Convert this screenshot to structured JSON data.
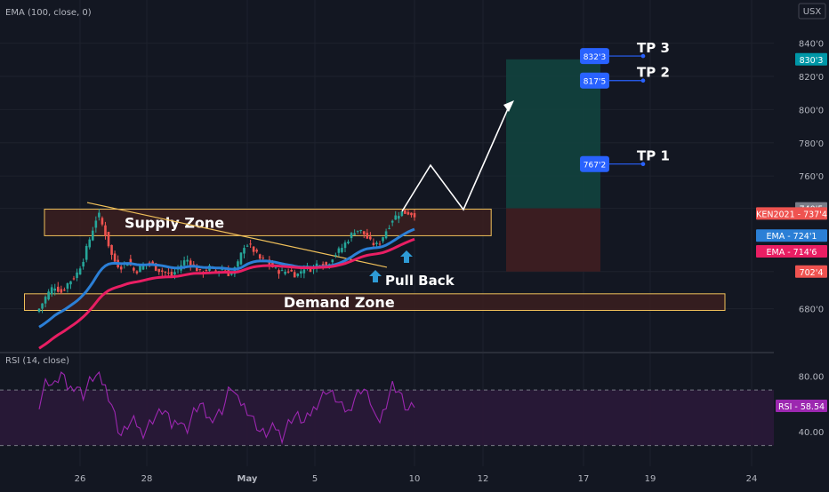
{
  "indicators": {
    "ema": "EMA (100, close, 0)",
    "rsi": "RSI (14, close)"
  },
  "currency": "USX",
  "colors": {
    "bg": "#131722",
    "grid": "#1e222d",
    "up": "#26a69a",
    "down": "#ef5350",
    "ema_fast": "#2b7fd6",
    "ema_slow": "#e91e63",
    "rsi": "#9c27b0",
    "zone_border": "#f0c05a",
    "zone_fill": "#3b1e1e",
    "target_fill": "#12423e",
    "stop_fill": "#3d1e22",
    "label_blue": "#2962ff"
  },
  "chart_data": {
    "type": "candlestick",
    "price_axis": {
      "ticks": [
        "840'0",
        "820'0",
        "800'0",
        "780'0",
        "760'0",
        "740'5",
        "702'4",
        "680'0"
      ],
      "range": [
        660,
        850
      ]
    },
    "x_ticks": [
      "26",
      "28",
      "May",
      "5",
      "10",
      "12",
      "17",
      "19",
      "24"
    ],
    "price_labels": [
      {
        "label": "830'3",
        "value": 830.3,
        "color": "#0097a7"
      },
      {
        "label": "740'5",
        "value": 740.5,
        "color": "#787b86"
      },
      {
        "label": "KEN2021 - 737'4",
        "value": 737.4,
        "color": "#ef5350"
      },
      {
        "label": "EMA - 724'1",
        "value": 724.1,
        "color": "#2b7fd6"
      },
      {
        "label": "EMA - 714'6",
        "value": 714.6,
        "color": "#e91e63"
      },
      {
        "label": "702'4",
        "value": 702.4,
        "color": "#ef5350"
      }
    ],
    "zones": [
      {
        "name": "Supply Zone",
        "top": 740,
        "bottom": 724,
        "t_start": 0.04,
        "t_end": 0.598
      },
      {
        "name": "Demand Zone",
        "top": 689,
        "bottom": 679,
        "t_start": 0.015,
        "t_end": 0.89
      }
    ],
    "trendline_label": "Pull Back",
    "targets": [
      {
        "name": "TP 3",
        "box": "832'3",
        "value": 832.3
      },
      {
        "name": "TP 2",
        "box": "817'5",
        "value": 817.5
      },
      {
        "name": "TP 1",
        "box": "767'2",
        "value": 767.2
      }
    ],
    "position": {
      "entry": 740.5,
      "target": 830.3,
      "stop": 702.4
    },
    "rsi": {
      "current_label": "RSI - 58.54",
      "current": 58.54,
      "ticks": [
        "80.00",
        "40.00"
      ],
      "upper": 70,
      "lower": 30
    },
    "close_path": [
      680,
      688,
      694,
      690,
      696,
      700,
      710,
      724,
      738,
      725,
      710,
      705,
      709,
      702,
      706,
      708,
      704,
      702,
      700,
      705,
      710,
      706,
      701,
      705,
      703,
      704,
      700,
      707,
      720,
      716,
      710,
      708,
      704,
      702,
      703,
      700,
      705,
      704,
      708,
      706,
      712,
      716,
      722,
      728,
      726,
      720,
      718,
      726,
      734,
      738,
      738,
      737
    ],
    "rsi_path": [
      60,
      78,
      72,
      82,
      70,
      74,
      66,
      78,
      80,
      72,
      58,
      36,
      44,
      48,
      38,
      46,
      52,
      56,
      44,
      50,
      40,
      54,
      60,
      48,
      52,
      56,
      74,
      62,
      58,
      50,
      40,
      38,
      44,
      36,
      48,
      52,
      46,
      54,
      62,
      70,
      66,
      58,
      54,
      66,
      72,
      62,
      44,
      58,
      74,
      68,
      54,
      59
    ]
  }
}
